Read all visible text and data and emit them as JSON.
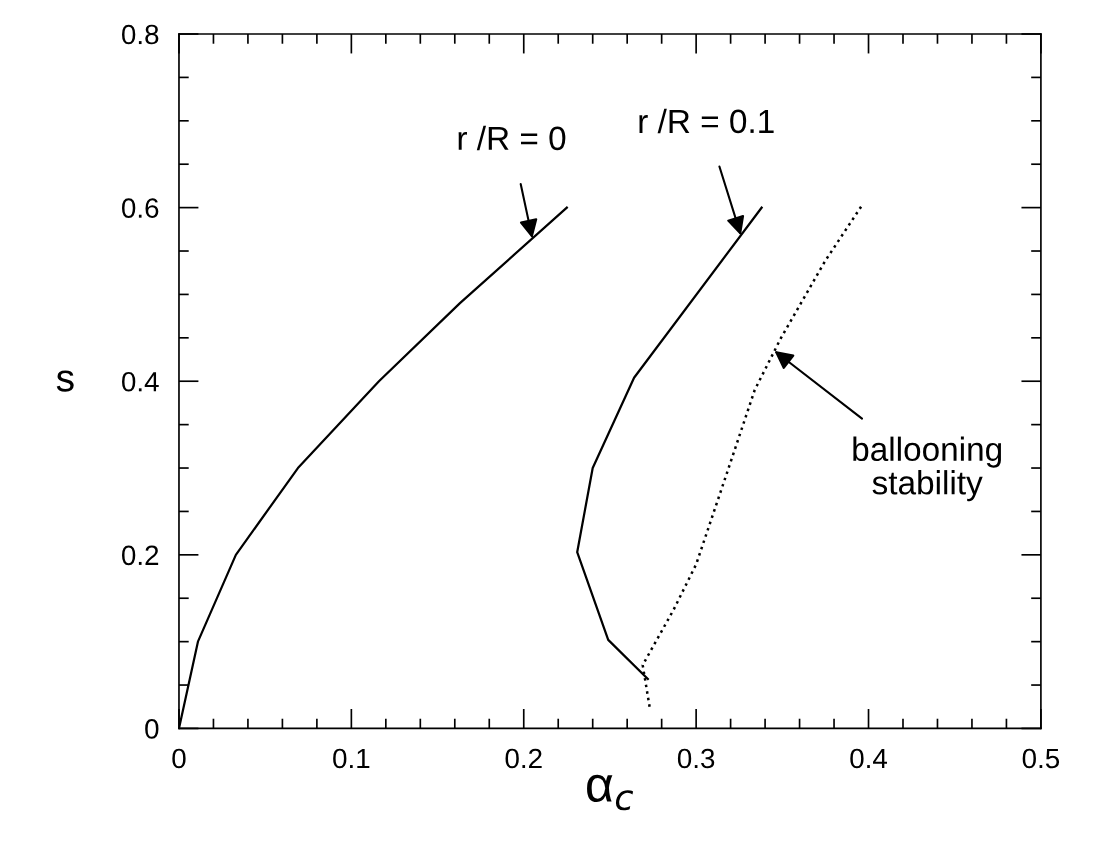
{
  "chart_data": {
    "type": "line",
    "xlabel": "α$_{c}$",
    "ylabel": "s",
    "xlim": [
      0,
      0.5
    ],
    "xticks": [
      0,
      0.1,
      0.2,
      0.3,
      0.4,
      0.5
    ],
    "ylim": [
      0,
      0.8
    ],
    "yticks": [
      0,
      0.2,
      0.4,
      0.6,
      0.8
    ],
    "grid": false,
    "legend": false,
    "marker": "none",
    "series": [
      {
        "color": "#000000",
        "line_style": "solid",
        "x": [
          0,
          0.011,
          0.033,
          0.069,
          0.116,
          0.163,
          0.225
        ],
        "values": [
          0,
          0.1,
          0.2,
          0.3,
          0.4,
          0.49,
          0.6
        ]
      },
      {
        "color": "#000000",
        "line_style": "solid",
        "x": [
          0.272,
          0.249,
          0.231,
          0.24,
          0.264,
          0.338
        ],
        "values": [
          0.057,
          0.102,
          0.203,
          0.3,
          0.404,
          0.6
        ]
      },
      {
        "color": "#000000",
        "line_style": "dotted",
        "x": [
          0.273,
          0.269,
          0.287,
          0.3,
          0.318,
          0.334,
          0.349,
          0.375,
          0.396
        ],
        "values": [
          0.025,
          0.073,
          0.137,
          0.189,
          0.295,
          0.39,
          0.449,
          0.539,
          0.602
        ]
      }
    ],
    "annotations": [
      {
        "text": "r /R = 0",
        "x": 0.205,
        "y": 0.5645
      },
      {
        "text": "r /R = 0.1",
        "x": 0.326,
        "y": 0.568
      },
      {
        "text": "ballooning\nstability",
        "x": 0.3454,
        "y": 0.435
      }
    ]
  }
}
